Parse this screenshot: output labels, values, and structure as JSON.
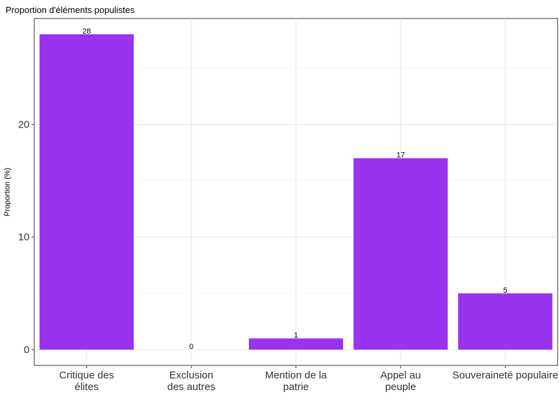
{
  "chart_data": {
    "type": "bar",
    "title": "Proportion d'éléments populistes",
    "xlabel": "",
    "ylabel": "Proportion (%)",
    "categories": [
      [
        "Critique des",
        "élites"
      ],
      [
        "Exclusion",
        "des autres"
      ],
      [
        "Mention de la",
        "patrie"
      ],
      [
        "Appel au",
        "peuple"
      ],
      [
        "Souveraineté populaire"
      ]
    ],
    "values": [
      28,
      0,
      1,
      17,
      5
    ],
    "data_labels": [
      "28",
      "0",
      "1",
      "17",
      "5"
    ],
    "yticks": [
      0,
      10,
      20
    ],
    "ytick_labels": [
      "0",
      "10",
      "20"
    ],
    "ylim": [
      -1.4,
      29.4
    ],
    "grid": true,
    "bar_color": "#9933ee"
  }
}
